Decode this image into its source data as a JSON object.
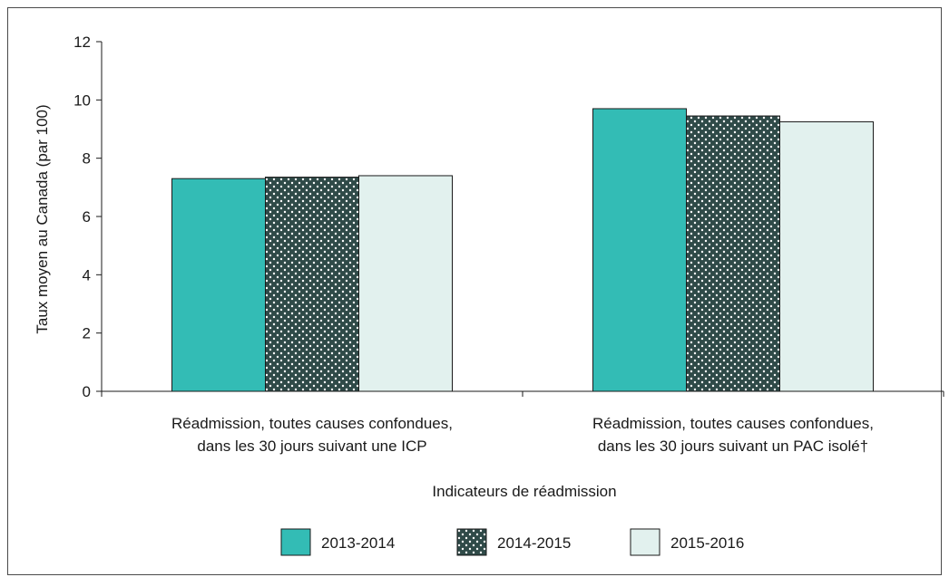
{
  "chart_data": {
    "type": "bar",
    "categories": [
      [
        "Réadmission, toutes causes confondues,",
        "dans les 30 jours suivant une ICP"
      ],
      [
        "Réadmission, toutes causes confondues,",
        "dans les 30 jours suivant un PAC isolé†"
      ]
    ],
    "series": [
      {
        "name": "2013-2014",
        "values": [
          7.3,
          9.7
        ],
        "color": "#33bcb5",
        "pattern": "solid"
      },
      {
        "name": "2014-2015",
        "values": [
          7.35,
          9.45
        ],
        "color": "#2f4a48",
        "pattern": "dots"
      },
      {
        "name": "2015-2016",
        "values": [
          7.4,
          9.25
        ],
        "color": "#e2f1ee",
        "pattern": "solid"
      }
    ],
    "ylabel": "Taux moyen au Canada (par 100)",
    "xlabel": "Indicateurs de réadmission",
    "ylim": [
      0,
      12
    ],
    "yticks": [
      0,
      2,
      4,
      6,
      8,
      10,
      12
    ],
    "grid": false,
    "legend_position": "bottom"
  }
}
